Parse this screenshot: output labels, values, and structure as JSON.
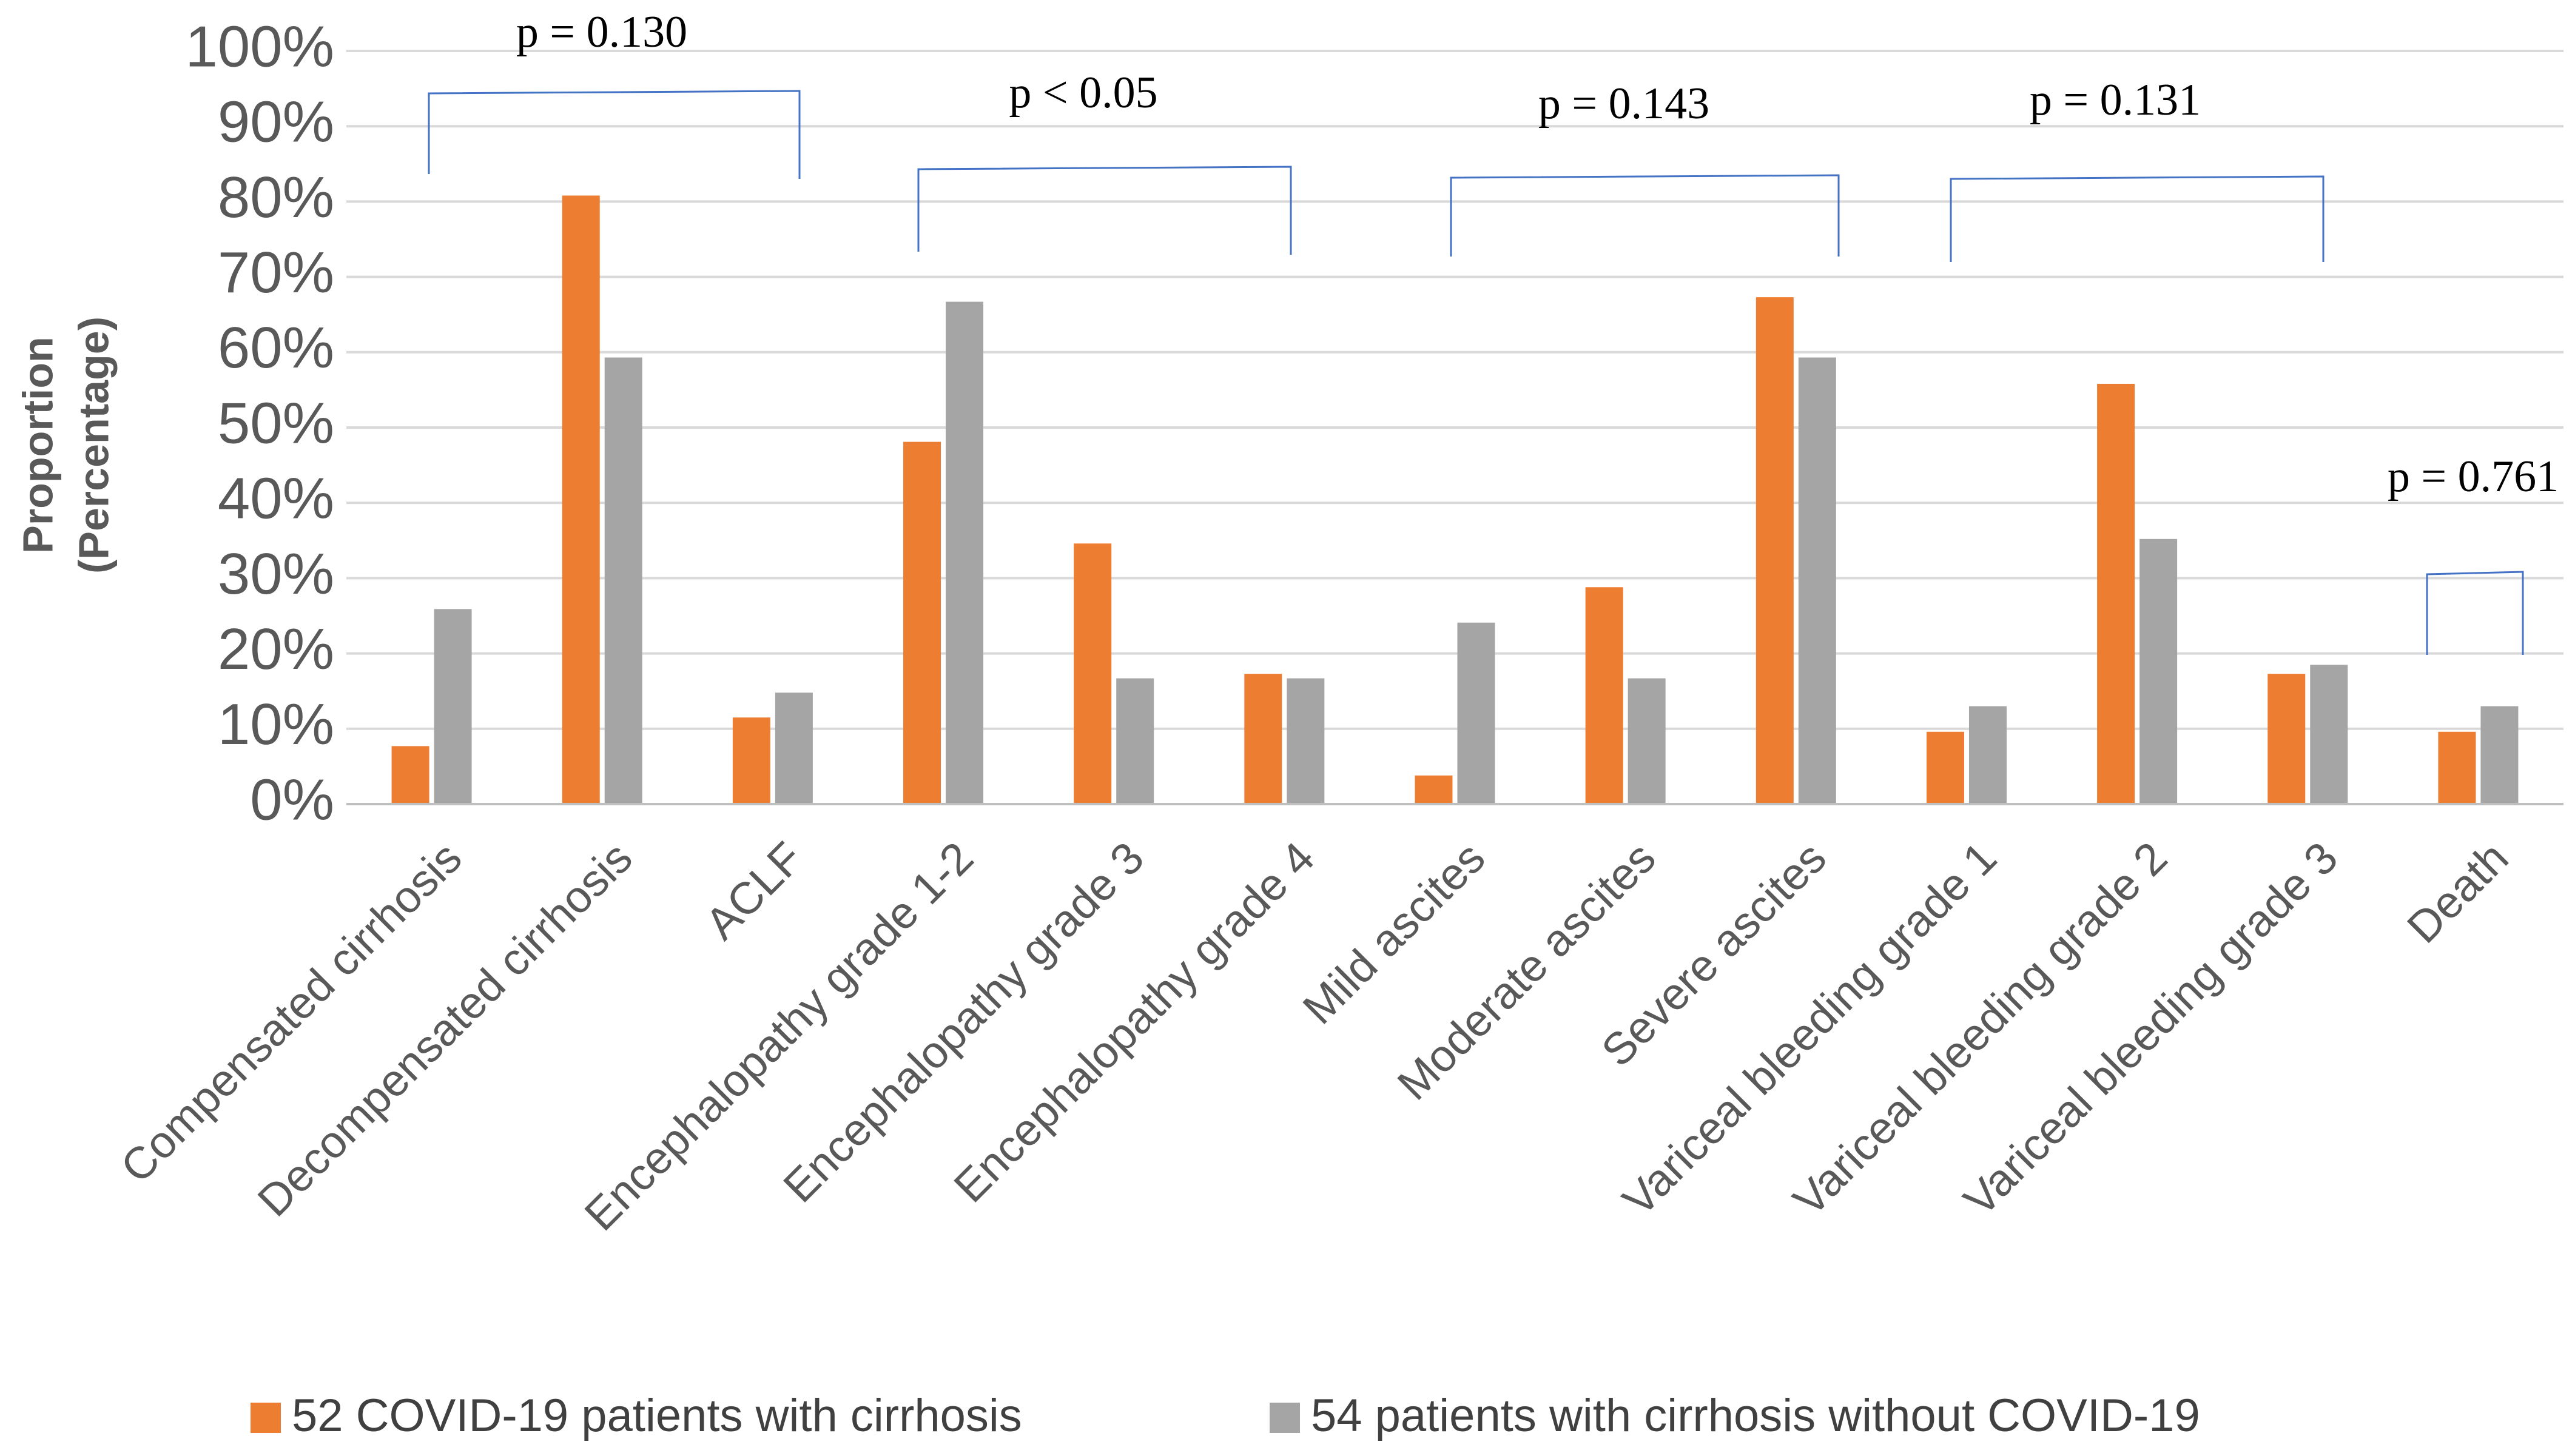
{
  "chart_data": {
    "type": "bar",
    "y_label": [
      "Proportion",
      "(Percentage)"
    ],
    "categories": [
      "Compensated cirrhosis",
      "Decompensated cirrhosis",
      "ACLF",
      "Encephalopathy grade 1-2",
      "Encephalopathy grade 3",
      "Encephalopathy grade 4",
      "Mild ascites",
      "Moderate ascites",
      "Severe ascites",
      "Variceal bleeding grade 1",
      "Variceal bleeding grade 2",
      "Variceal bleeding grade 3",
      "Death"
    ],
    "series": [
      {
        "name": "52 COVID-19 patients with cirrhosis",
        "color": "#ed7d31",
        "values": [
          7.7,
          80.8,
          11.5,
          48.1,
          34.6,
          17.3,
          3.8,
          28.8,
          67.3,
          9.6,
          55.8,
          17.3,
          9.6
        ]
      },
      {
        "name": "54 patients with cirrhosis without COVID-19",
        "color": "#a5a5a5",
        "values": [
          25.9,
          59.3,
          14.8,
          66.7,
          16.7,
          16.7,
          24.1,
          16.7,
          59.3,
          13.0,
          35.2,
          18.5,
          13.0
        ]
      }
    ],
    "ylim": [
      0,
      100
    ],
    "yticks": [
      {
        "value": 0,
        "label": "0%"
      },
      {
        "value": 10,
        "label": "10%"
      },
      {
        "value": 20,
        "label": "20%"
      },
      {
        "value": 30,
        "label": "30%"
      },
      {
        "value": 40,
        "label": "40%"
      },
      {
        "value": 50,
        "label": "50%"
      },
      {
        "value": 60,
        "label": "60%"
      },
      {
        "value": 70,
        "label": "70%"
      },
      {
        "value": 80,
        "label": "80%"
      },
      {
        "value": 90,
        "label": "90%"
      },
      {
        "value": 100,
        "label": "100%"
      }
    ],
    "grid": true,
    "legend": "bottom",
    "annotations": [
      "p = 0.130",
      "p < 0.05",
      "p = 0.143",
      "p = 0.131",
      "p = 0.761"
    ]
  }
}
